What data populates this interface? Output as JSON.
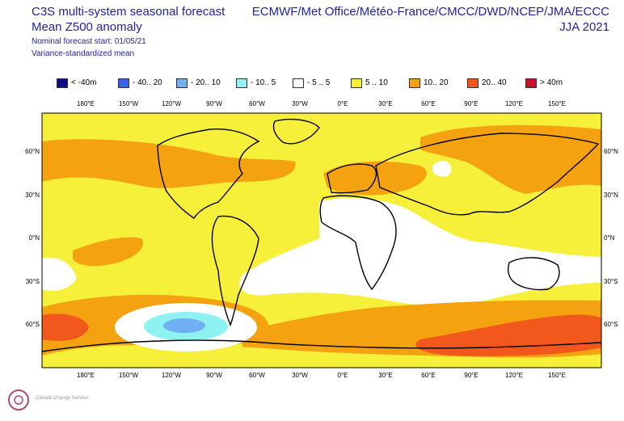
{
  "header": {
    "title": "C3S multi-system seasonal forecast",
    "subtitle": "Mean Z500 anomaly",
    "forecast_start": "Nominal forecast start: 01/05/21",
    "method": "Variance-standardized mean",
    "systems": "ECMWF/Met Office/Météo-France/CMCC/DWD/NCEP/JMA/ECCC",
    "season": "JJA 2021"
  },
  "legend": [
    {
      "label": "< -40m",
      "color": "#0a0a8c"
    },
    {
      "label": "- 40.. 20",
      "color": "#3a62e6"
    },
    {
      "label": "- 20.. 10",
      "color": "#6fb0f2"
    },
    {
      "label": "- 10.. 5",
      "color": "#8ff2f2"
    },
    {
      "label": "- 5 .. 5",
      "color": "#ffffff"
    },
    {
      "label": "5 .. 10",
      "color": "#f7f03a"
    },
    {
      "label": "10.. 20",
      "color": "#f4a20f"
    },
    {
      "label": "20.. 40",
      "color": "#f2581c"
    },
    {
      "label": ">  40m",
      "color": "#c8102a"
    }
  ],
  "map": {
    "lon_labels": [
      "180°E",
      "150°W",
      "120°W",
      "90°W",
      "60°W",
      "30°W",
      "0°E",
      "30°E",
      "60°E",
      "90°E",
      "120°E",
      "150°E"
    ],
    "lat_labels": [
      "60°N",
      "30°N",
      "0°N",
      "30°S",
      "60°S"
    ],
    "colors": {
      "white": "#ffffff",
      "yellow": "#f7f03a",
      "orange": "#f4a20f",
      "red": "#f2581c",
      "cyan": "#8ff2f2",
      "blue": "#6fb0f2",
      "border": "#000000"
    }
  },
  "logo": {
    "name": "Climate Change Service",
    "icon": "c3s-logo-icon"
  }
}
